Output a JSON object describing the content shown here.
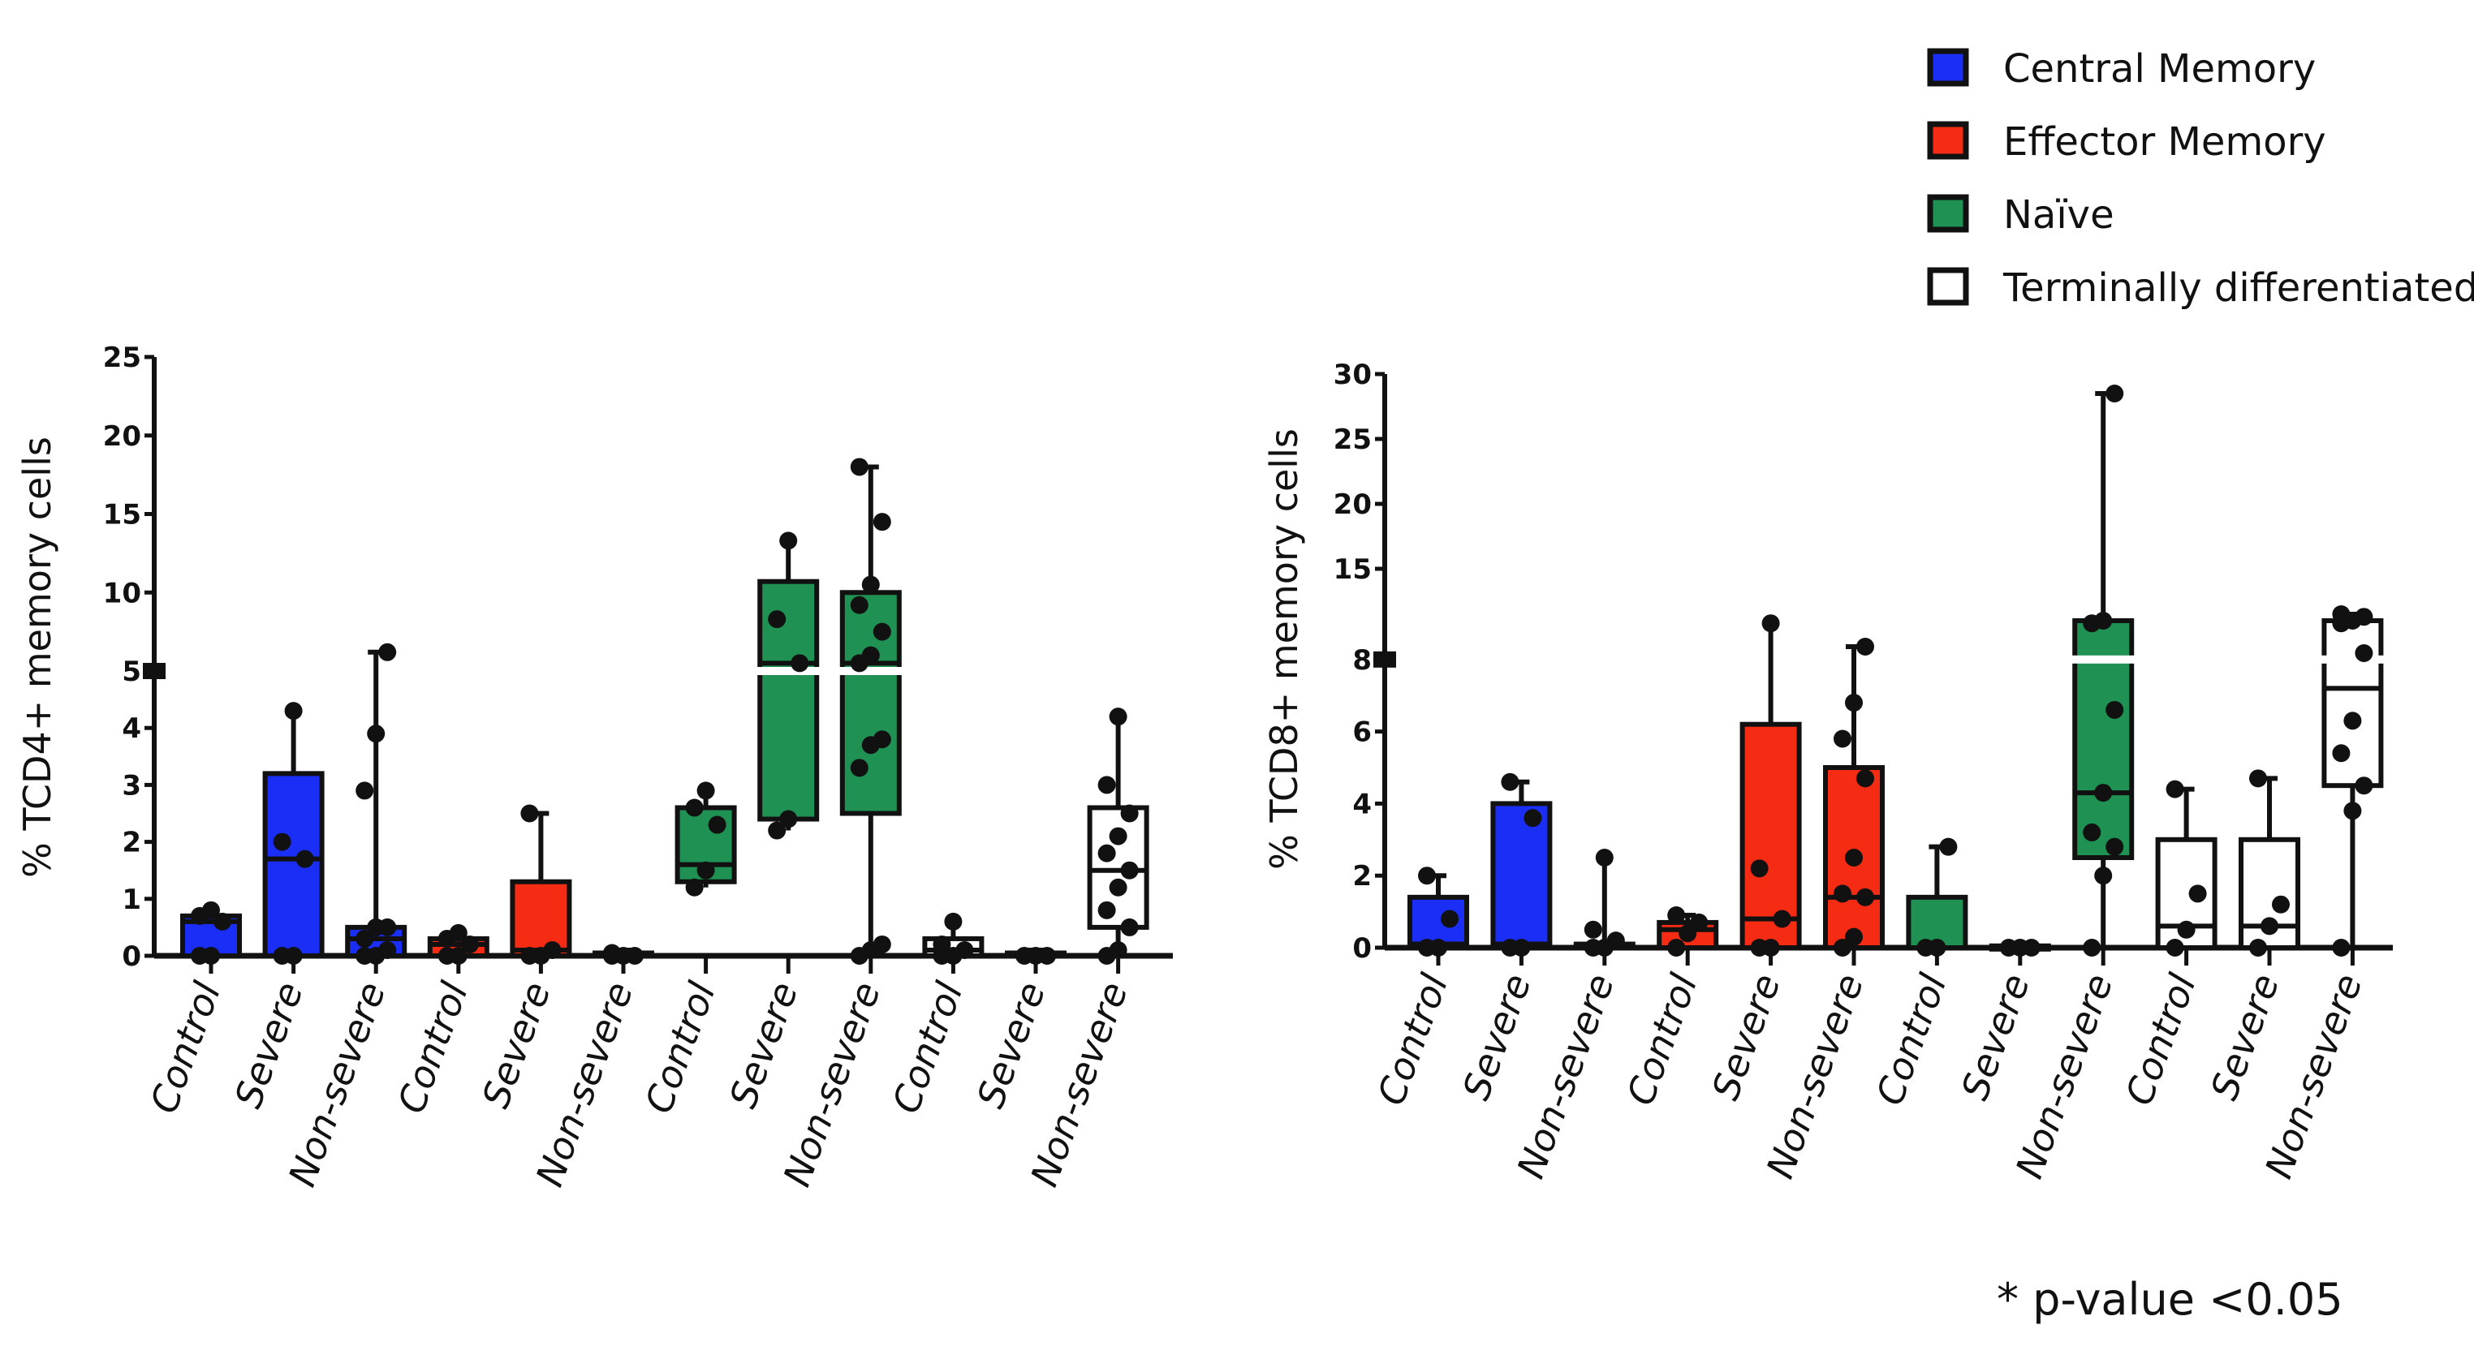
{
  "legend": {
    "items": [
      {
        "label": "Central Memory",
        "color": "#1a2ef5"
      },
      {
        "label": "Effector Memory",
        "color": "#f52b14"
      },
      {
        "label": "Naïve",
        "color": "#1f9153"
      },
      {
        "label": "Terminally differentiated",
        "color": "#ffffff"
      }
    ]
  },
  "footnote": "* p-value <0.05",
  "chart_data": [
    {
      "type": "box",
      "ylabel": "% TCD4+ memory cells",
      "y_axis_break": {
        "lower": [
          0,
          5
        ],
        "upper": [
          5,
          25
        ]
      },
      "yticks": [
        "0",
        "1",
        "2",
        "3",
        "4",
        "5",
        "10",
        "15",
        "20",
        "25"
      ],
      "ytick_values": [
        0,
        1,
        2,
        3,
        4,
        5,
        10,
        15,
        20,
        25
      ],
      "categories": [
        "Control",
        "Severe",
        "Non-severe",
        "Control",
        "Severe",
        "Non-severe",
        "Control",
        "Severe",
        "Non-severe",
        "Control",
        "Severe",
        "Non-severe"
      ],
      "groups": [
        {
          "series": "Central Memory",
          "min": 0,
          "q1": 0,
          "median": 0.6,
          "q3": 0.7,
          "max": 0.8,
          "points": [
            0,
            0,
            0.6,
            0.7,
            0.8
          ]
        },
        {
          "series": "Central Memory",
          "min": 0,
          "q1": 0,
          "median": 1.7,
          "q3": 3.2,
          "max": 4.3,
          "points": [
            0,
            0,
            1.7,
            2.0,
            4.3
          ]
        },
        {
          "series": "Central Memory",
          "min": 0,
          "q1": 0,
          "median": 0.3,
          "q3": 0.5,
          "max": 6.2,
          "points": [
            0,
            0,
            0.1,
            0.3,
            0.5,
            0.5,
            2.9,
            3.9,
            6.2
          ]
        },
        {
          "series": "Effector Memory",
          "min": 0,
          "q1": 0,
          "median": 0.2,
          "q3": 0.3,
          "max": 0.4,
          "points": [
            0,
            0,
            0.2,
            0.3,
            0.4
          ]
        },
        {
          "series": "Effector Memory",
          "min": 0,
          "q1": 0,
          "median": 0.1,
          "q3": 1.3,
          "max": 2.5,
          "points": [
            0,
            0,
            0.1,
            2.5
          ]
        },
        {
          "series": "Effector Memory",
          "min": 0,
          "q1": 0,
          "median": 0,
          "q3": 0.05,
          "max": 0.1,
          "points": [
            0,
            0,
            0,
            0.05
          ]
        },
        {
          "series": "Naïve",
          "min": 1.2,
          "q1": 1.3,
          "median": 1.6,
          "q3": 2.6,
          "max": 2.9,
          "points": [
            1.2,
            1.5,
            2.3,
            2.6,
            2.9
          ]
        },
        {
          "series": "Naïve",
          "min": 2.2,
          "q1": 2.4,
          "median": 5.5,
          "q3": 10.7,
          "max": 13.3,
          "points": [
            2.2,
            2.4,
            5.5,
            8.3,
            13.3
          ]
        },
        {
          "series": "Naïve",
          "min": 0,
          "q1": 2.5,
          "median": 5.5,
          "q3": 10,
          "max": 18,
          "points": [
            0,
            0.1,
            0.2,
            3.3,
            3.7,
            3.8,
            5.5,
            6,
            7.5,
            9.2,
            10.5,
            14.5,
            18
          ]
        },
        {
          "series": "Terminally differentiated",
          "min": 0,
          "q1": 0,
          "median": 0.1,
          "q3": 0.3,
          "max": 0.6,
          "points": [
            0,
            0,
            0.1,
            0.2,
            0.6
          ]
        },
        {
          "series": "Terminally differentiated",
          "min": 0,
          "q1": 0,
          "median": 0,
          "q3": 0.05,
          "max": 0.1,
          "points": [
            0,
            0,
            0
          ]
        },
        {
          "series": "Terminally differentiated",
          "min": 0,
          "q1": 0.5,
          "median": 1.5,
          "q3": 2.6,
          "max": 4.2,
          "points": [
            0,
            0.1,
            0.5,
            0.8,
            1.2,
            1.5,
            1.8,
            2.1,
            2.5,
            3.0,
            4.2
          ]
        }
      ]
    },
    {
      "type": "box",
      "ylabel": "% TCD8+ memory cells",
      "y_axis_break": {
        "lower": [
          0,
          8
        ],
        "upper": [
          8,
          30
        ]
      },
      "yticks": [
        "0",
        "2",
        "4",
        "6",
        "8",
        "15",
        "20",
        "25",
        "30"
      ],
      "ytick_values": [
        0,
        2,
        4,
        6,
        8,
        15,
        20,
        25,
        30
      ],
      "categories": [
        "Control",
        "Severe",
        "Non-severe",
        "Control",
        "Severe",
        "Non-severe",
        "Control",
        "Severe",
        "Non-severe",
        "Control",
        "Severe",
        "Non-severe"
      ],
      "groups": [
        {
          "series": "Central Memory",
          "min": 0,
          "q1": 0,
          "median": 0.1,
          "q3": 1.4,
          "max": 2.0,
          "points": [
            0,
            0,
            0.8,
            2.0
          ]
        },
        {
          "series": "Central Memory",
          "min": 0,
          "q1": 0,
          "median": 0.1,
          "q3": 4.0,
          "max": 4.6,
          "points": [
            0,
            0,
            3.6,
            4.6
          ]
        },
        {
          "series": "Central Memory",
          "min": 0,
          "q1": 0,
          "median": 0,
          "q3": 0.1,
          "max": 2.5,
          "points": [
            0,
            0,
            0.2,
            0.5,
            2.5
          ]
        },
        {
          "series": "Effector Memory",
          "min": 0,
          "q1": 0,
          "median": 0.5,
          "q3": 0.7,
          "max": 0.9,
          "points": [
            0,
            0.4,
            0.7,
            0.9
          ]
        },
        {
          "series": "Effector Memory",
          "min": 0,
          "q1": 0,
          "median": 0.8,
          "q3": 6.2,
          "max": 10.8,
          "points": [
            0,
            0,
            0.8,
            2.2,
            10.8
          ]
        },
        {
          "series": "Effector Memory",
          "min": 0,
          "q1": 0,
          "median": 1.4,
          "q3": 5.0,
          "max": 9.0,
          "points": [
            0,
            0.3,
            1.4,
            1.5,
            2.5,
            4.7,
            5.8,
            6.8,
            9.0
          ]
        },
        {
          "series": "Naïve",
          "min": 0,
          "q1": 0,
          "median": 0,
          "q3": 1.4,
          "max": 2.8,
          "points": [
            0,
            0,
            2.8
          ]
        },
        {
          "series": "Naïve",
          "min": 0,
          "q1": 0,
          "median": 0,
          "q3": 0.05,
          "max": 0.1,
          "points": [
            0,
            0,
            0
          ]
        },
        {
          "series": "Naïve",
          "min": 0,
          "q1": 2.5,
          "median": 4.3,
          "q3": 11,
          "max": 28.5,
          "points": [
            0,
            2.0,
            2.8,
            3.2,
            4.3,
            6.6,
            10.8,
            11,
            28.5
          ]
        },
        {
          "series": "Terminally differentiated",
          "min": 0,
          "q1": 0,
          "median": 0.6,
          "q3": 3.0,
          "max": 4.4,
          "points": [
            0,
            0.5,
            1.5,
            4.4
          ]
        },
        {
          "series": "Terminally differentiated",
          "min": 0,
          "q1": 0,
          "median": 0.6,
          "q3": 3.0,
          "max": 4.7,
          "points": [
            0,
            0.6,
            1.2,
            4.7
          ]
        },
        {
          "series": "Terminally differentiated",
          "min": 0,
          "q1": 4.5,
          "median": 7.2,
          "q3": 11,
          "max": 11.5,
          "points": [
            0,
            3.8,
            4.5,
            5.4,
            6.3,
            8.5,
            10.8,
            11,
            11.3,
            11.5
          ]
        }
      ]
    }
  ]
}
